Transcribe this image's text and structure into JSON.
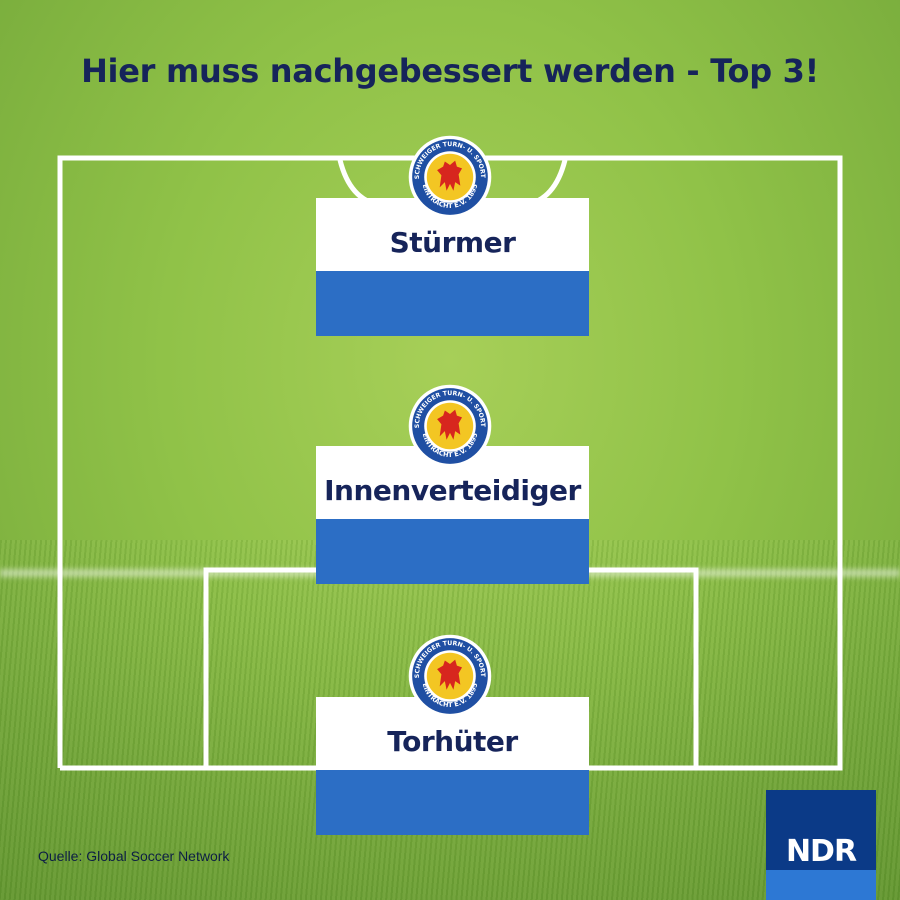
{
  "title": "Hier muss nachgebessert werden - Top 3!",
  "positions": [
    {
      "label": "Stürmer"
    },
    {
      "label": "Innenverteidiger"
    },
    {
      "label": "Torhüter"
    }
  ],
  "crest": {
    "ring_text_top": "BRAUNSCHWEIGER TURN- U. SPORTVEREIN",
    "ring_text_bottom": "EINTRACHT E.V. 1895",
    "icon": "lion-crest-icon"
  },
  "source": "Quelle: Global Soccer Network",
  "logo": {
    "text": "NDR"
  },
  "colors": {
    "title": "#16245a",
    "card_blue": "#2c6ec5",
    "card_white": "#ffffff",
    "ndr_dark": "#0b3a87",
    "ndr_light": "#2d78d4",
    "crest_ring": "#1f4fa3",
    "crest_yellow": "#f3c623",
    "crest_lion": "#d7261e"
  }
}
